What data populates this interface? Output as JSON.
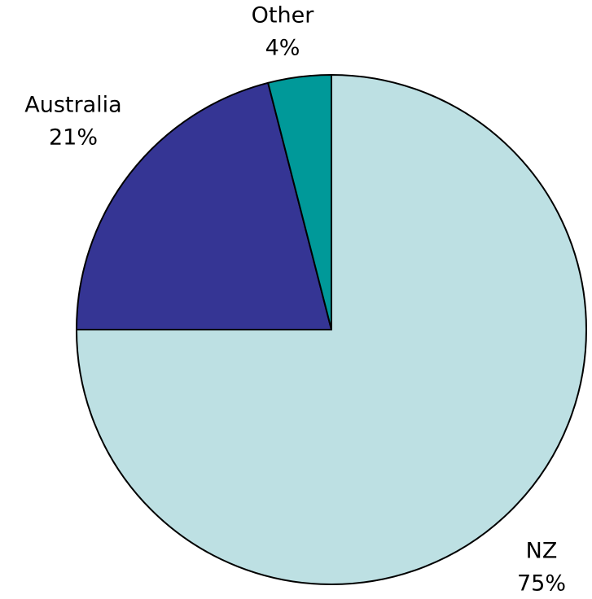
{
  "chart_data": {
    "type": "pie",
    "categories": [
      "NZ",
      "Australia",
      "Other"
    ],
    "values": [
      75,
      21,
      4
    ],
    "value_labels": [
      "75%",
      "21%",
      "4%"
    ],
    "colors": [
      "#bde0e3",
      "#353594",
      "#009999"
    ]
  }
}
